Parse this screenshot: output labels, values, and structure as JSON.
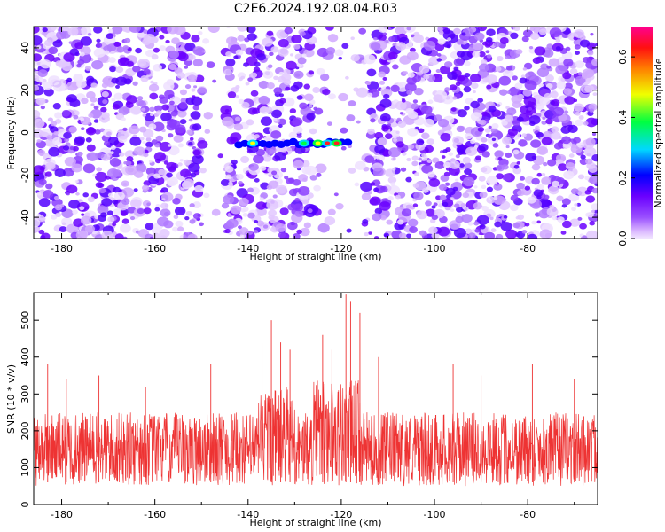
{
  "title": "C2E6.2024.192.08.04.R03",
  "chart_data": [
    {
      "type": "heatmap",
      "xlabel": "Height of straight line (km)",
      "ylabel": "Frequency (Hz)",
      "xlim": [
        -186,
        -65
      ],
      "ylim": [
        -50,
        50
      ],
      "xticks": [
        -180,
        -160,
        -140,
        -120,
        -100,
        -80
      ],
      "yticks": [
        -40,
        -20,
        0,
        20,
        40
      ],
      "colorbar": {
        "label": "Normalized spectral amplitude",
        "range": [
          0,
          0.7
        ],
        "ticks": [
          0.0,
          0.2,
          0.4,
          0.6
        ],
        "colors": [
          "#f2e6ff",
          "#dcbcff",
          "#9050ff",
          "#6a00ff",
          "#0000ff",
          "#00e0ff",
          "#00ff40",
          "#ffff00",
          "#ff8000",
          "#ff0000",
          "#ff00a0"
        ]
      },
      "signal_band": {
        "frequency_hz": -5,
        "x_range": [
          -142,
          -118
        ],
        "peak_amplitude": 0.45
      },
      "clear_gaps": [
        [
          -150,
          -145
        ],
        [
          -126,
          -114
        ]
      ],
      "grid": false
    },
    {
      "type": "line",
      "xlabel": "Height of straight line (km)",
      "ylabel": "SNR (10 * v/v)",
      "xlim": [
        -186,
        -65
      ],
      "ylim": [
        0,
        575
      ],
      "xticks": [
        -180,
        -160,
        -140,
        -120,
        -100,
        -80
      ],
      "yticks": [
        0,
        100,
        200,
        300,
        400,
        500
      ],
      "series": [
        {
          "color": "#ee3333",
          "baseline": 140,
          "noise_range": [
            50,
            250
          ],
          "spikes": [
            {
              "x": -186,
              "y": 300
            },
            {
              "x": -183,
              "y": 380
            },
            {
              "x": -179,
              "y": 340
            },
            {
              "x": -172,
              "y": 350
            },
            {
              "x": -162,
              "y": 320
            },
            {
              "x": -148,
              "y": 380
            },
            {
              "x": -137,
              "y": 440
            },
            {
              "x": -135,
              "y": 500
            },
            {
              "x": -133,
              "y": 440
            },
            {
              "x": -131,
              "y": 420
            },
            {
              "x": -124,
              "y": 460
            },
            {
              "x": -122,
              "y": 420
            },
            {
              "x": -119,
              "y": 570
            },
            {
              "x": -118,
              "y": 550
            },
            {
              "x": -116,
              "y": 520
            },
            {
              "x": -112,
              "y": 400
            },
            {
              "x": -96,
              "y": 380
            },
            {
              "x": -90,
              "y": 350
            },
            {
              "x": -79,
              "y": 380
            },
            {
              "x": -70,
              "y": 340
            }
          ],
          "elevated_regions": [
            {
              "x_range": [
                -138,
                -130
              ],
              "level": 210
            },
            {
              "x_range": [
                -126,
                -116
              ],
              "level": 230
            }
          ]
        }
      ],
      "grid": false
    }
  ]
}
